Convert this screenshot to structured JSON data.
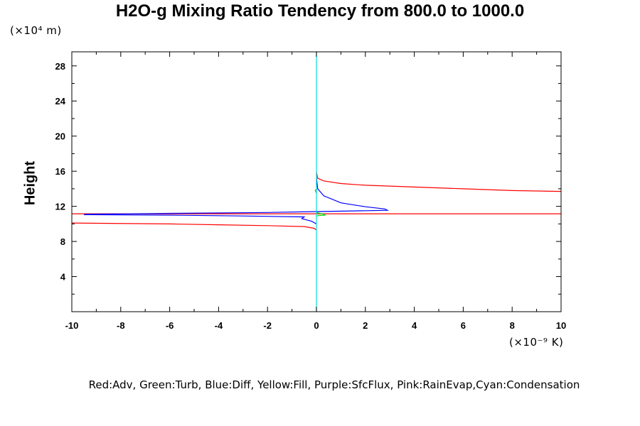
{
  "chart_data": {
    "type": "line",
    "title": "H2O-g Mixing Ratio Tendency from 800.0 to 1000.0",
    "ylabel": "Height",
    "y_unit_label": "(×10⁴ m)",
    "x_unit_label": "(×10⁻⁹ K)",
    "legend_text": "Red:Adv, Green:Turb, Blue:Diff, Yellow:Fill, Purple:SfcFlux, Pink:RainEvap,Cyan:Condensation",
    "xlim": [
      -10,
      10
    ],
    "ylim": [
      0,
      29.6
    ],
    "x_ticks": [
      -10,
      -8,
      -6,
      -4,
      -2,
      0,
      2,
      4,
      6,
      8,
      10
    ],
    "y_ticks": [
      4,
      8,
      12,
      16,
      20,
      24,
      28
    ],
    "grid": false,
    "series": [
      {
        "name": "Adv",
        "color": "#ff0000",
        "segments": [
          [
            [
              -10,
              10.1
            ],
            [
              -6,
              10.0
            ],
            [
              -4,
              9.9
            ],
            [
              -2,
              9.8
            ],
            [
              -0.5,
              9.7
            ],
            [
              -0.1,
              9.5
            ],
            [
              0,
              9.3
            ]
          ],
          [
            [
              -10,
              11.15
            ],
            [
              10,
              11.15
            ]
          ],
          [
            [
              0,
              15.9
            ],
            [
              0.05,
              15.2
            ],
            [
              0.3,
              14.9
            ],
            [
              1,
              14.6
            ],
            [
              2,
              14.4
            ],
            [
              4,
              14.2
            ],
            [
              6,
              14.0
            ],
            [
              8,
              13.8
            ],
            [
              10,
              13.7
            ]
          ]
        ]
      },
      {
        "name": "Diff",
        "color": "#0000ff",
        "segments": [
          [
            [
              0,
              15.3
            ],
            [
              0.05,
              14.0
            ],
            [
              0.3,
              13.2
            ],
            [
              1,
              12.4
            ],
            [
              2,
              11.95
            ],
            [
              2.8,
              11.7
            ],
            [
              2.9,
              11.55
            ],
            [
              2.0,
              11.5
            ],
            [
              0,
              11.4
            ],
            [
              -2,
              11.3
            ],
            [
              -6,
              11.2
            ],
            [
              -9.5,
              11.1
            ]
          ],
          [
            [
              -9.5,
              11.05
            ],
            [
              -6,
              11.0
            ],
            [
              -3,
              10.9
            ],
            [
              -0.5,
              10.8
            ],
            [
              -0.6,
              10.6
            ],
            [
              -0.2,
              10.3
            ],
            [
              0,
              10.0
            ]
          ]
        ]
      },
      {
        "name": "Turb",
        "color": "#00dd00",
        "segments": [
          [
            [
              0,
              13.5
            ],
            [
              -0.05,
              13.8
            ],
            [
              0,
              14.0
            ]
          ],
          [
            [
              0,
              11.3
            ],
            [
              0.3,
              11.1
            ],
            [
              0.35,
              11.0
            ],
            [
              0.1,
              10.95
            ],
            [
              0,
              10.9
            ]
          ]
        ]
      },
      {
        "name": "Condensation",
        "color": "#00dddd",
        "segments": [
          [
            [
              0,
              0
            ],
            [
              0,
              29.6
            ]
          ]
        ]
      }
    ]
  }
}
